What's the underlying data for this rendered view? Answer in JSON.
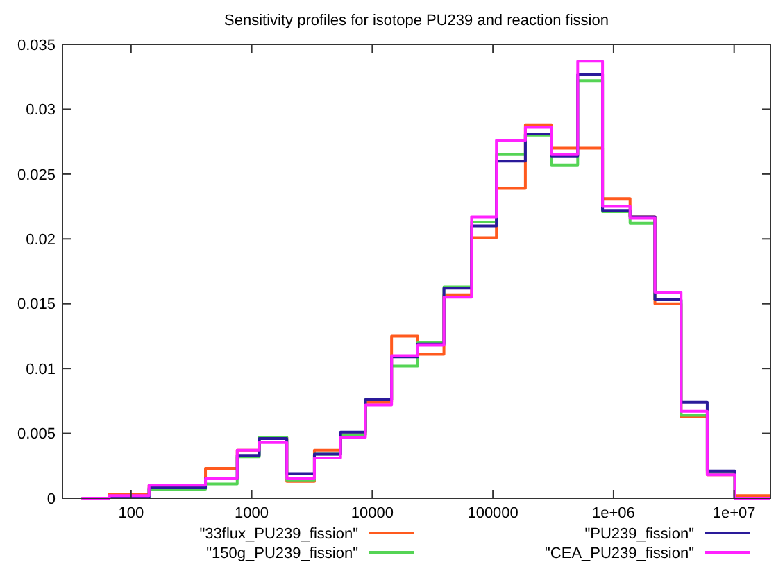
{
  "chart_data": {
    "type": "histogram",
    "title": "Sensitivity profiles for isotope PU239 and reaction fission",
    "bins": [
      39,
      66,
      141,
      414,
      759,
      1156,
      1956,
      3311,
      5458,
      8770,
      14450,
      23840,
      39260,
      66530,
      106900,
      185800,
      306200,
      504800,
      810800,
      1371000,
      2203000,
      3631000,
      5984000,
      10140000,
      20000000
    ],
    "series": [
      {
        "name": "\"33flux_PU239_fission\"",
        "color": "#ff5a1e",
        "values": [
          0,
          0.0003,
          0.001,
          0.0023,
          0.0037,
          0.0047,
          0.0013,
          0.0037,
          0.0049,
          0.0074,
          0.0125,
          0.0111,
          0.0157,
          0.0201,
          0.0239,
          0.0288,
          0.027,
          0.027,
          0.0231,
          0.0217,
          0.015,
          0.0063,
          0.0018,
          0.0002
        ]
      },
      {
        "name": "\"150g_PU239_fission\"",
        "color": "#55d455",
        "values": [
          0,
          0.0001,
          0.0007,
          0.0011,
          0.0032,
          0.0047,
          0.0014,
          0.0034,
          0.0049,
          0.0076,
          0.0102,
          0.012,
          0.0163,
          0.0213,
          0.0265,
          0.028,
          0.0257,
          0.0322,
          0.0221,
          0.0212,
          0.0153,
          0.0064,
          0.002,
          0
        ]
      },
      {
        "name": "\"PU239_fission\"",
        "color": "#2a1a9a",
        "values": [
          0,
          0.0001,
          0.0008,
          0.0015,
          0.0033,
          0.0046,
          0.0019,
          0.0034,
          0.0051,
          0.0076,
          0.0109,
          0.0119,
          0.0162,
          0.021,
          0.026,
          0.0281,
          0.0264,
          0.0327,
          0.0222,
          0.0217,
          0.0153,
          0.0074,
          0.0021,
          0
        ]
      },
      {
        "name": "\"CEA_PU239_fission\"",
        "color": "#ff22ff",
        "values": [
          0,
          0.0002,
          0.001,
          0.0015,
          0.0037,
          0.0043,
          0.0015,
          0.0031,
          0.0047,
          0.0072,
          0.011,
          0.0118,
          0.0155,
          0.0217,
          0.0276,
          0.0286,
          0.0265,
          0.0337,
          0.0225,
          0.0216,
          0.0159,
          0.0067,
          0.0018,
          0
        ]
      }
    ],
    "log": "x",
    "xlim": [
      27,
      20000000
    ],
    "xticks": [
      100,
      1000,
      10000,
      100000,
      {
        "value": 1000000,
        "label": "1e+06"
      },
      {
        "value": 10000000,
        "label": "1e+07"
      }
    ],
    "ylim": [
      0,
      0.035
    ],
    "yticks": [
      0,
      0.005,
      0.01,
      0.015,
      0.02,
      0.025,
      0.03,
      0.035
    ],
    "legend": "bottom",
    "line_style": "solid",
    "grid": false
  }
}
